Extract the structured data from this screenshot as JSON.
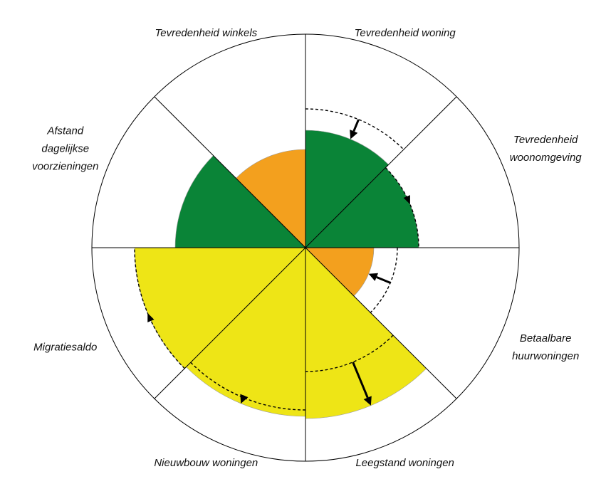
{
  "chart_data": {
    "type": "polar-area",
    "title": "",
    "max_value": 100,
    "categories": [
      {
        "name": "Tevredenheid woning",
        "label_lines": [
          "Tevredenheid woning"
        ],
        "value": 55,
        "previous": 65,
        "color": "#0a8437"
      },
      {
        "name": "Tevredenheid woonomgeving",
        "label_lines": [
          "Tevredenheid",
          "woonomgeving"
        ],
        "value": 53,
        "previous": 53,
        "color": "#0a8437"
      },
      {
        "name": "Betaalbare huurwoningen",
        "label_lines": [
          "Betaalbare",
          "huurwoningen"
        ],
        "value": 32,
        "previous": 43,
        "color": "#f3a01e"
      },
      {
        "name": "Leegstand woningen",
        "label_lines": [
          "Leegstand woningen"
        ],
        "value": 80,
        "previous": 58,
        "color": "#eee516"
      },
      {
        "name": "Nieuwbouw woningen",
        "label_lines": [
          "Nieuwbouw woningen"
        ],
        "value": 79,
        "previous": 76,
        "color": "#eee516"
      },
      {
        "name": "Migratiesaldo",
        "label_lines": [
          "Migratiesaldo"
        ],
        "value": 80,
        "previous": 80,
        "color": "#eee516"
      },
      {
        "name": "Afstand dagelijkse voorzieningen",
        "label_lines": [
          "Afstand",
          "dagelijkse",
          "voorzieningen"
        ],
        "value": 61,
        "previous": null,
        "color": "#0a8437"
      },
      {
        "name": "Tevredenheid winkels",
        "label_lines": [
          "Tevredenheid winkels"
        ],
        "value": 46,
        "previous": null,
        "color": "#f3a01e"
      }
    ],
    "legend": "none",
    "grid": false
  },
  "colors": {
    "green": "#0a8437",
    "orange": "#f3a01e",
    "yellow": "#eee516",
    "outline": "#000000"
  }
}
